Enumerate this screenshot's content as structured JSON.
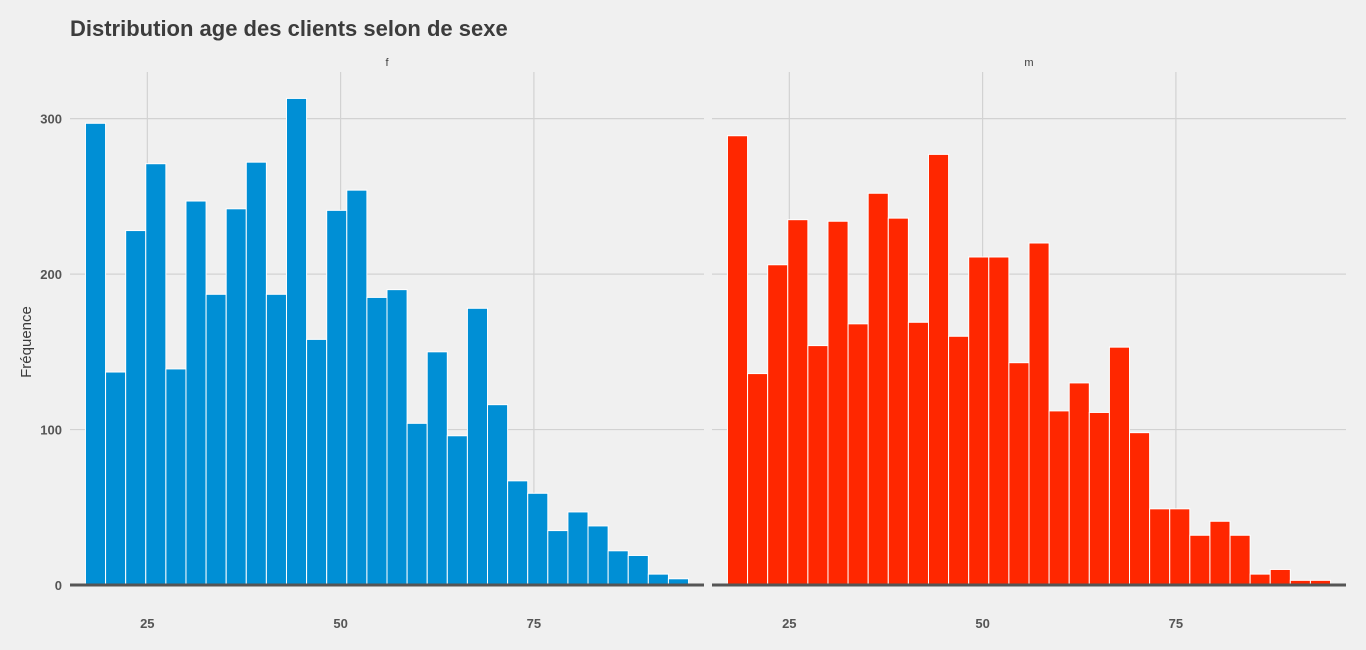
{
  "chart_data": {
    "type": "bar",
    "title": "Distribution age des clients selon de sexe",
    "xlabel": "",
    "ylabel": "Fréquence",
    "xlim": [
      15,
      97
    ],
    "ylim": [
      0,
      330
    ],
    "x_ticks": [
      25,
      50,
      75
    ],
    "y_ticks": [
      0,
      100,
      200,
      300
    ],
    "grid": true,
    "legend": "none",
    "bin_width": 2.6,
    "bin_start": 17,
    "panels": [
      {
        "name": "f",
        "color": "#008fd5",
        "values": [
          297,
          137,
          228,
          271,
          139,
          247,
          187,
          242,
          272,
          187,
          313,
          158,
          241,
          254,
          185,
          190,
          104,
          150,
          96,
          178,
          116,
          67,
          59,
          35,
          47,
          38,
          22,
          19,
          7,
          4
        ]
      },
      {
        "name": "m",
        "color": "#ff2700",
        "values": [
          289,
          136,
          206,
          235,
          154,
          234,
          168,
          252,
          236,
          169,
          277,
          160,
          211,
          211,
          143,
          220,
          112,
          130,
          111,
          153,
          98,
          49,
          49,
          32,
          41,
          32,
          7,
          10,
          3,
          3
        ]
      }
    ]
  }
}
